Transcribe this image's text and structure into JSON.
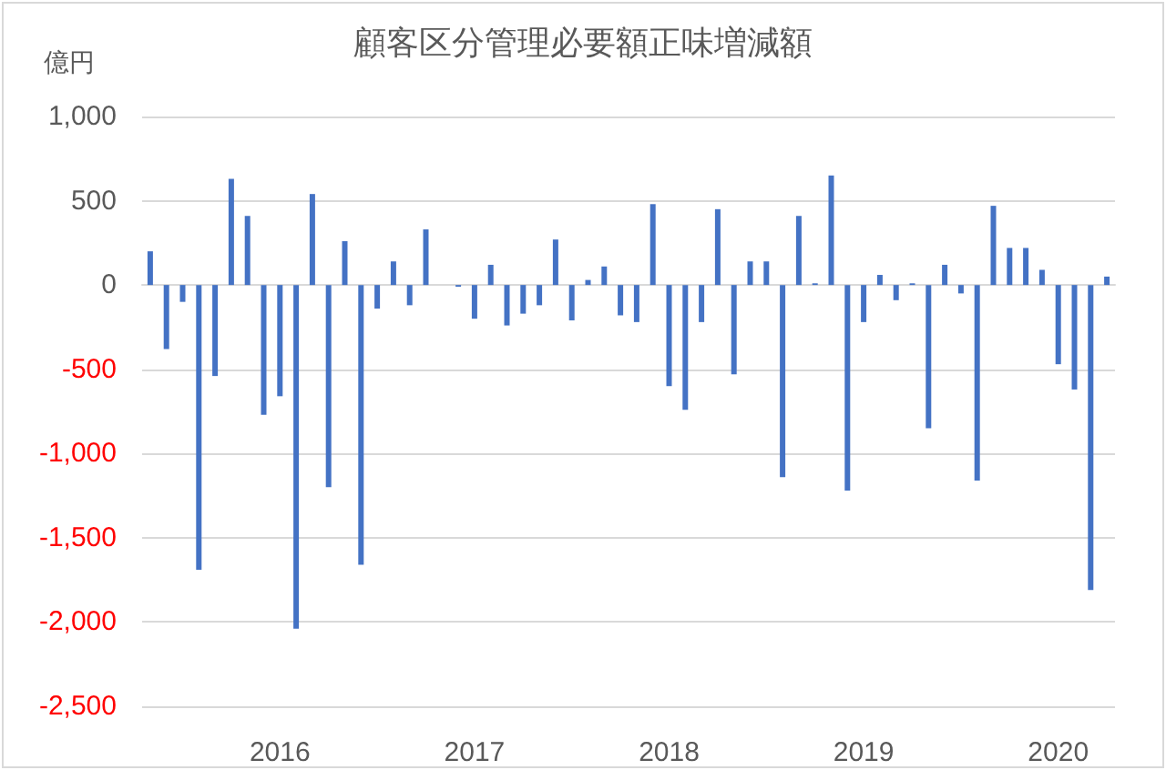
{
  "chart_data": {
    "type": "bar",
    "title": "顧客区分管理必要額正味増減額",
    "ylabel": "億円",
    "categories": [
      null,
      null,
      null,
      null,
      null,
      null,
      null,
      null,
      "2016",
      null,
      null,
      null,
      null,
      null,
      null,
      null,
      null,
      null,
      null,
      null,
      "2017",
      null,
      null,
      null,
      null,
      null,
      null,
      null,
      null,
      null,
      null,
      null,
      "2018",
      null,
      null,
      null,
      null,
      null,
      null,
      null,
      null,
      null,
      null,
      null,
      "2019",
      null,
      null,
      null,
      null,
      null,
      null,
      null,
      null,
      null,
      null,
      null,
      "2020",
      null,
      null,
      null
    ],
    "values": [
      200,
      -380,
      -100,
      -1690,
      -540,
      630,
      410,
      -770,
      -660,
      -2040,
      540,
      -1200,
      260,
      -1660,
      -140,
      140,
      -120,
      330,
      0,
      -10,
      -200,
      120,
      -240,
      -170,
      -120,
      270,
      -210,
      30,
      110,
      -180,
      -220,
      480,
      -600,
      -740,
      -220,
      450,
      -530,
      140,
      140,
      -1140,
      410,
      10,
      650,
      -1220,
      -220,
      60,
      -90,
      10,
      -850,
      120,
      -50,
      -1160,
      470,
      220,
      220,
      90,
      -470,
      -620,
      -1810,
      50
    ],
    "color": "#4472c4",
    "ylim": [
      -2500,
      1000
    ],
    "yticks": [
      {
        "value": -2500,
        "label": "-2,500"
      },
      {
        "value": -2000,
        "label": "-2,000"
      },
      {
        "value": -1500,
        "label": "-1,500"
      },
      {
        "value": -1000,
        "label": "-1,000"
      },
      {
        "value": -500,
        "label": "-500"
      },
      0,
      500,
      {
        "value": 1000,
        "label": "1,000"
      }
    ],
    "grid": true
  }
}
